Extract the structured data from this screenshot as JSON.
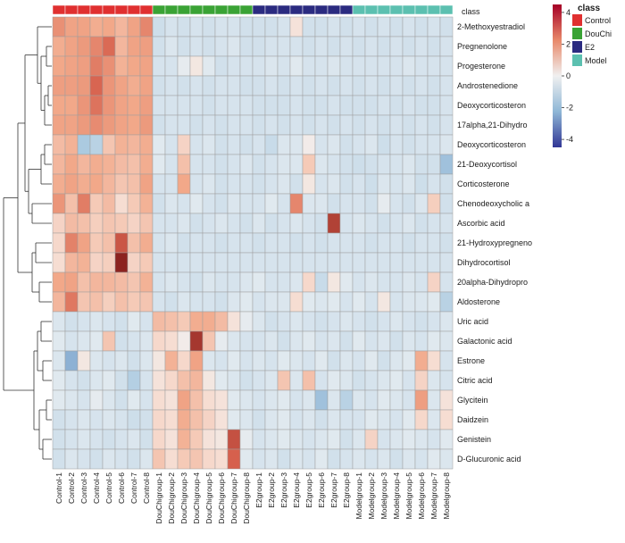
{
  "chart_data": {
    "type": "heatmap",
    "title": "",
    "class_bar_label": "class",
    "rows": [
      "2-Methoxyestradiol",
      "Pregnenolone",
      "Progesterone",
      "Androstenedione",
      "Deoxycorticosteron",
      "17alpha,21-Dihydro",
      "Deoxycorticosteron",
      "21-Deoxycortisol",
      "Corticosterone",
      "Chenodeoxycholic a",
      "Ascorbic acid",
      "21-Hydroxypregneno",
      "Dihydrocortisol",
      "20alpha-Dihydropro",
      "Aldosterone",
      "Uric acid",
      "Galactonic acid",
      "Estrone",
      "Citric acid",
      "Glycitein",
      "Daidzein",
      "Genistein",
      "D-Glucuronic acid"
    ],
    "columns": [
      "Control-1",
      "Control-2",
      "Control-3",
      "Control-4",
      "Control-5",
      "Control-6",
      "Control-7",
      "Control-8",
      "DouChigroup-1",
      "DouChigroup-2",
      "DouChigroup-3",
      "DouChigroup-4",
      "DouChigroup-5",
      "DouChigroup-6",
      "DouChigroup-7",
      "DouChigroup-8",
      "E2group-1",
      "E2group-2",
      "E2group-3",
      "E2group-4",
      "E2group-5",
      "E2group-6",
      "E2group-7",
      "E2group-8",
      "Modelgroup-1",
      "Modelgroup-2",
      "Modelgroup-3",
      "Modelgroup-4",
      "Modelgroup-5",
      "Modelgroup-6",
      "Modelgroup-7",
      "Modelgroup-8"
    ],
    "column_classes": [
      "Control",
      "Control",
      "Control",
      "Control",
      "Control",
      "Control",
      "Control",
      "Control",
      "DouChi",
      "DouChi",
      "DouChi",
      "DouChi",
      "DouChi",
      "DouChi",
      "DouChi",
      "DouChi",
      "E2",
      "E2",
      "E2",
      "E2",
      "E2",
      "E2",
      "E2",
      "E2",
      "Model",
      "Model",
      "Model",
      "Model",
      "Model",
      "Model",
      "Model",
      "Model"
    ],
    "values": [
      [
        2.0,
        1.6,
        1.6,
        1.4,
        1.5,
        1.2,
        1.6,
        2.2,
        -0.7,
        -0.5,
        -0.6,
        -0.5,
        -0.6,
        -0.5,
        -0.5,
        -0.6,
        -0.6,
        -0.6,
        -0.5,
        0.3,
        -0.6,
        -0.6,
        -0.5,
        -0.6,
        -0.5,
        -0.6,
        -0.5,
        -0.6,
        -0.5,
        -0.6,
        -0.5,
        -0.6
      ],
      [
        1.4,
        1.6,
        1.8,
        2.2,
        2.8,
        1.2,
        1.6,
        1.7,
        -0.6,
        -0.4,
        -0.6,
        -0.5,
        -0.6,
        -0.5,
        -0.4,
        -0.6,
        -0.6,
        -0.5,
        -0.5,
        -0.5,
        -0.6,
        -0.5,
        -0.6,
        -0.5,
        -0.6,
        -0.5,
        -0.6,
        -0.5,
        -0.6,
        -0.5,
        -0.6,
        -0.5
      ],
      [
        1.5,
        1.6,
        1.7,
        2.4,
        2.0,
        1.3,
        1.5,
        1.6,
        -0.5,
        -0.5,
        -0.2,
        0.2,
        -0.3,
        -0.6,
        -0.5,
        -0.5,
        -0.5,
        -0.4,
        -0.5,
        -0.3,
        -0.5,
        -0.5,
        -0.4,
        -0.5,
        -0.5,
        -0.5,
        -0.5,
        -0.5,
        -0.4,
        -0.5,
        -0.5,
        -0.5
      ],
      [
        1.7,
        1.7,
        1.8,
        2.9,
        1.9,
        1.6,
        1.4,
        1.6,
        -0.6,
        -0.5,
        -0.6,
        -0.5,
        -0.6,
        -0.5,
        -0.5,
        -0.6,
        -0.6,
        -0.5,
        -0.6,
        -0.5,
        -0.6,
        -0.5,
        -0.6,
        -0.5,
        -0.6,
        -0.5,
        -0.6,
        -0.5,
        -0.6,
        -0.5,
        -0.6,
        -0.5
      ],
      [
        1.5,
        1.5,
        1.9,
        2.6,
        1.9,
        1.6,
        1.5,
        1.7,
        -0.5,
        -0.5,
        -0.5,
        -0.5,
        -0.6,
        -0.5,
        -0.5,
        -0.5,
        -0.6,
        -0.6,
        -0.6,
        -0.5,
        -0.6,
        -0.6,
        -0.5,
        -0.6,
        -0.6,
        -0.6,
        -0.5,
        -0.6,
        -0.5,
        -0.6,
        -0.6,
        -0.5
      ],
      [
        1.6,
        1.6,
        1.8,
        2.1,
        1.8,
        1.6,
        1.5,
        1.8,
        -0.6,
        -0.5,
        -0.5,
        -0.6,
        -0.5,
        -0.6,
        -0.5,
        -0.5,
        -0.6,
        -0.5,
        -0.6,
        -0.5,
        -0.6,
        -0.5,
        -0.6,
        -0.5,
        -0.6,
        -0.5,
        -0.6,
        -0.5,
        -0.6,
        -0.5,
        -0.6,
        -0.5
      ],
      [
        1.1,
        1.3,
        -1.4,
        -1.1,
        0.9,
        1.3,
        1.2,
        1.4,
        -0.3,
        -0.5,
        0.6,
        -0.5,
        -0.4,
        -0.6,
        -0.5,
        -0.6,
        -0.5,
        -0.8,
        -0.4,
        -0.4,
        0.1,
        -0.5,
        -0.4,
        -0.6,
        -0.5,
        -0.4,
        -0.7,
        -0.5,
        -0.6,
        -0.5,
        -0.5,
        -0.4
      ],
      [
        1.2,
        1.5,
        1.2,
        1.4,
        1.3,
        1.1,
        1.0,
        1.4,
        -0.3,
        -0.5,
        1.0,
        -0.5,
        -0.5,
        -0.6,
        -0.5,
        -0.4,
        -0.6,
        -0.5,
        -0.4,
        -0.4,
        0.8,
        -0.4,
        -0.5,
        -0.6,
        -0.7,
        -0.6,
        -0.5,
        -0.5,
        -0.4,
        -0.6,
        -0.6,
        -1.6
      ],
      [
        1.4,
        1.6,
        1.4,
        1.5,
        1.2,
        0.9,
        1.0,
        1.6,
        -0.5,
        -0.5,
        1.5,
        -0.5,
        -0.4,
        -0.6,
        -0.5,
        -0.5,
        -0.6,
        -0.5,
        -0.4,
        -0.6,
        0.2,
        -0.5,
        -0.4,
        -0.6,
        -0.5,
        -0.7,
        -0.4,
        -0.5,
        -0.4,
        -0.7,
        -0.5,
        -0.6
      ],
      [
        1.9,
        1.0,
        2.4,
        0.8,
        1.1,
        0.4,
        0.8,
        1.3,
        -0.6,
        -0.4,
        -0.5,
        -0.3,
        -0.5,
        -0.6,
        -0.4,
        -0.5,
        -0.5,
        -0.3,
        -0.5,
        2.2,
        -0.4,
        -0.4,
        -0.6,
        -0.5,
        -0.5,
        -0.6,
        -0.2,
        -0.5,
        -0.6,
        -0.4,
        0.7,
        -0.6
      ],
      [
        0.6,
        1.1,
        1.0,
        0.7,
        0.9,
        0.8,
        0.6,
        0.9,
        -0.5,
        -0.5,
        -0.4,
        -0.6,
        -0.5,
        -0.4,
        -0.5,
        -0.6,
        -0.4,
        -0.6,
        -0.5,
        -0.4,
        -0.5,
        -0.6,
        3.6,
        -0.5,
        -0.4,
        -0.5,
        -0.6,
        -0.5,
        -0.4,
        -0.6,
        -0.5,
        -0.5
      ],
      [
        0.5,
        2.3,
        1.6,
        0.8,
        1.0,
        3.2,
        1.0,
        1.4,
        -0.5,
        -0.4,
        -0.6,
        -0.5,
        -0.5,
        -0.6,
        -0.5,
        -0.5,
        -0.6,
        -0.5,
        -0.5,
        -0.6,
        -0.5,
        -0.6,
        -0.5,
        -0.5,
        -0.5,
        -0.6,
        -0.5,
        -0.5,
        -0.6,
        -0.5,
        -0.5,
        -0.6
      ],
      [
        0.4,
        1.2,
        1.3,
        0.6,
        0.7,
        4.2,
        0.6,
        0.8,
        -0.5,
        -0.5,
        -0.5,
        -0.5,
        -0.5,
        -0.5,
        -0.5,
        -0.5,
        -0.5,
        -0.5,
        -0.5,
        -0.5,
        -0.5,
        -0.5,
        -0.5,
        -0.5,
        -0.5,
        -0.5,
        -0.5,
        -0.5,
        -0.5,
        -0.5,
        -0.5,
        -0.5
      ],
      [
        1.5,
        1.6,
        1.0,
        1.2,
        1.2,
        1.1,
        0.9,
        1.3,
        -0.5,
        -0.4,
        -0.5,
        -0.6,
        -0.4,
        -0.5,
        -0.5,
        -0.4,
        -0.3,
        -0.5,
        -0.5,
        -0.4,
        0.5,
        -0.8,
        0.2,
        -0.3,
        -0.5,
        -0.4,
        -0.5,
        -0.5,
        -0.4,
        -0.5,
        0.6,
        -0.5
      ],
      [
        1.2,
        2.5,
        0.9,
        1.0,
        0.7,
        1.0,
        0.8,
        0.9,
        -0.5,
        -0.6,
        -0.4,
        -0.5,
        -0.5,
        -0.6,
        -0.4,
        -0.3,
        -0.5,
        -0.4,
        -0.4,
        0.4,
        -0.3,
        -0.4,
        -0.3,
        -0.5,
        -0.3,
        -0.5,
        0.2,
        -0.5,
        -0.4,
        -0.4,
        -0.3,
        -1.1
      ],
      [
        -0.4,
        -0.6,
        -0.5,
        -0.4,
        -0.5,
        -0.6,
        -0.3,
        -0.5,
        1.1,
        1.0,
        0.8,
        1.4,
        1.4,
        1.1,
        0.3,
        -0.2,
        -0.4,
        -0.6,
        -0.5,
        -0.4,
        -0.5,
        -0.6,
        -0.5,
        -0.4,
        -0.5,
        -0.6,
        -0.5,
        -0.4,
        -0.5,
        -0.6,
        -0.5,
        -0.4
      ],
      [
        -0.3,
        -0.5,
        -0.4,
        -0.3,
        0.9,
        -0.6,
        -0.5,
        -0.4,
        0.5,
        0.4,
        0.1,
        3.8,
        0.9,
        -0.2,
        -0.4,
        -0.5,
        -0.5,
        -0.4,
        -0.6,
        -0.4,
        -0.3,
        -0.5,
        -0.4,
        -0.6,
        -0.3,
        -0.5,
        -0.4,
        -0.6,
        -0.4,
        -0.5,
        -0.3,
        -0.4
      ],
      [
        -0.4,
        -1.9,
        0.2,
        -0.4,
        -0.5,
        -0.4,
        -0.6,
        -0.4,
        0.2,
        1.3,
        0.5,
        1.6,
        -0.4,
        -0.5,
        -0.3,
        -0.5,
        -0.4,
        -0.5,
        -0.3,
        -0.4,
        -0.5,
        -0.3,
        -0.6,
        -0.4,
        -0.5,
        -0.3,
        -0.6,
        -0.4,
        -0.3,
        1.4,
        0.4,
        -0.5
      ],
      [
        -0.3,
        -0.5,
        -0.6,
        -0.4,
        -0.3,
        -0.6,
        -1.2,
        -0.5,
        0.3,
        0.5,
        1.0,
        1.2,
        0.2,
        -0.3,
        -0.4,
        -0.6,
        -0.5,
        -0.4,
        0.9,
        -0.4,
        1.0,
        -0.5,
        -0.3,
        -0.4,
        -0.6,
        -0.5,
        -0.4,
        -0.3,
        -0.5,
        0.6,
        -0.4,
        -0.5
      ],
      [
        -0.3,
        -0.4,
        -0.5,
        -0.2,
        -0.4,
        -0.6,
        -0.3,
        -0.5,
        0.4,
        0.3,
        1.6,
        1.0,
        0.4,
        0.3,
        -0.3,
        -0.4,
        -0.5,
        -0.4,
        -0.3,
        -0.5,
        -0.4,
        -1.6,
        -0.4,
        -1.1,
        -0.4,
        -0.5,
        -0.3,
        -0.4,
        -0.5,
        1.7,
        -0.4,
        0.3
      ],
      [
        -0.6,
        -0.5,
        -0.4,
        -0.5,
        -0.4,
        -0.5,
        -0.7,
        -0.6,
        0.5,
        0.4,
        1.4,
        1.0,
        0.6,
        0.3,
        -0.3,
        -0.4,
        -0.6,
        -0.4,
        -0.3,
        -0.5,
        -0.4,
        -0.6,
        -0.4,
        -0.5,
        -0.5,
        -0.3,
        -0.4,
        -0.5,
        -0.3,
        0.5,
        -0.4,
        0.4
      ],
      [
        -0.6,
        -0.5,
        -0.4,
        -0.5,
        -0.6,
        -0.5,
        -0.4,
        -0.6,
        0.5,
        0.3,
        1.3,
        0.8,
        0.3,
        0.2,
        3.3,
        -0.2,
        -0.5,
        -0.4,
        -0.3,
        -0.4,
        -0.5,
        -0.4,
        -0.3,
        -0.6,
        -0.4,
        0.6,
        -0.5,
        -0.4,
        -0.3,
        -0.4,
        -0.5,
        -0.3
      ],
      [
        -0.6,
        -0.4,
        -0.5,
        -0.6,
        -0.4,
        -0.5,
        -0.6,
        -0.4,
        0.9,
        0.4,
        0.8,
        0.9,
        0.5,
        0.4,
        3.0,
        -0.3,
        -0.5,
        -0.4,
        -0.6,
        -0.4,
        -0.5,
        -0.3,
        -0.6,
        -0.5,
        -0.4,
        -0.5,
        -0.4,
        -0.6,
        -0.4,
        -0.5,
        -0.3,
        -0.4
      ]
    ],
    "color_scale": {
      "min": -4.5,
      "max": 4.5,
      "low": "#313695",
      "mid": "#f0f0f0",
      "high": "#a50026"
    },
    "colorbar_ticks": [
      "4",
      "2",
      "0",
      "-2",
      "-4"
    ],
    "colorbar_tick_values": [
      4,
      2,
      0,
      -2,
      -4
    ],
    "legend": {
      "title": "class",
      "entries": [
        {
          "label": "Control",
          "color": "#e03030"
        },
        {
          "label": "DouChi",
          "color": "#3aa335"
        },
        {
          "label": "E2",
          "color": "#2b2b80"
        },
        {
          "label": "Model",
          "color": "#5cc0b0"
        }
      ]
    },
    "row_dendrogram": true,
    "column_dendrogram": false
  }
}
